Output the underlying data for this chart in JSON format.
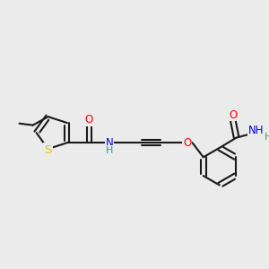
{
  "bg_color": "#ebebeb",
  "bond_color": "#1a1a1a",
  "atom_colors": {
    "O": "#ff0000",
    "N": "#0000ee",
    "S": "#cccc00",
    "H": "#3a9090",
    "C": "#1a1a1a"
  },
  "fs": 8.5,
  "lw": 1.5
}
